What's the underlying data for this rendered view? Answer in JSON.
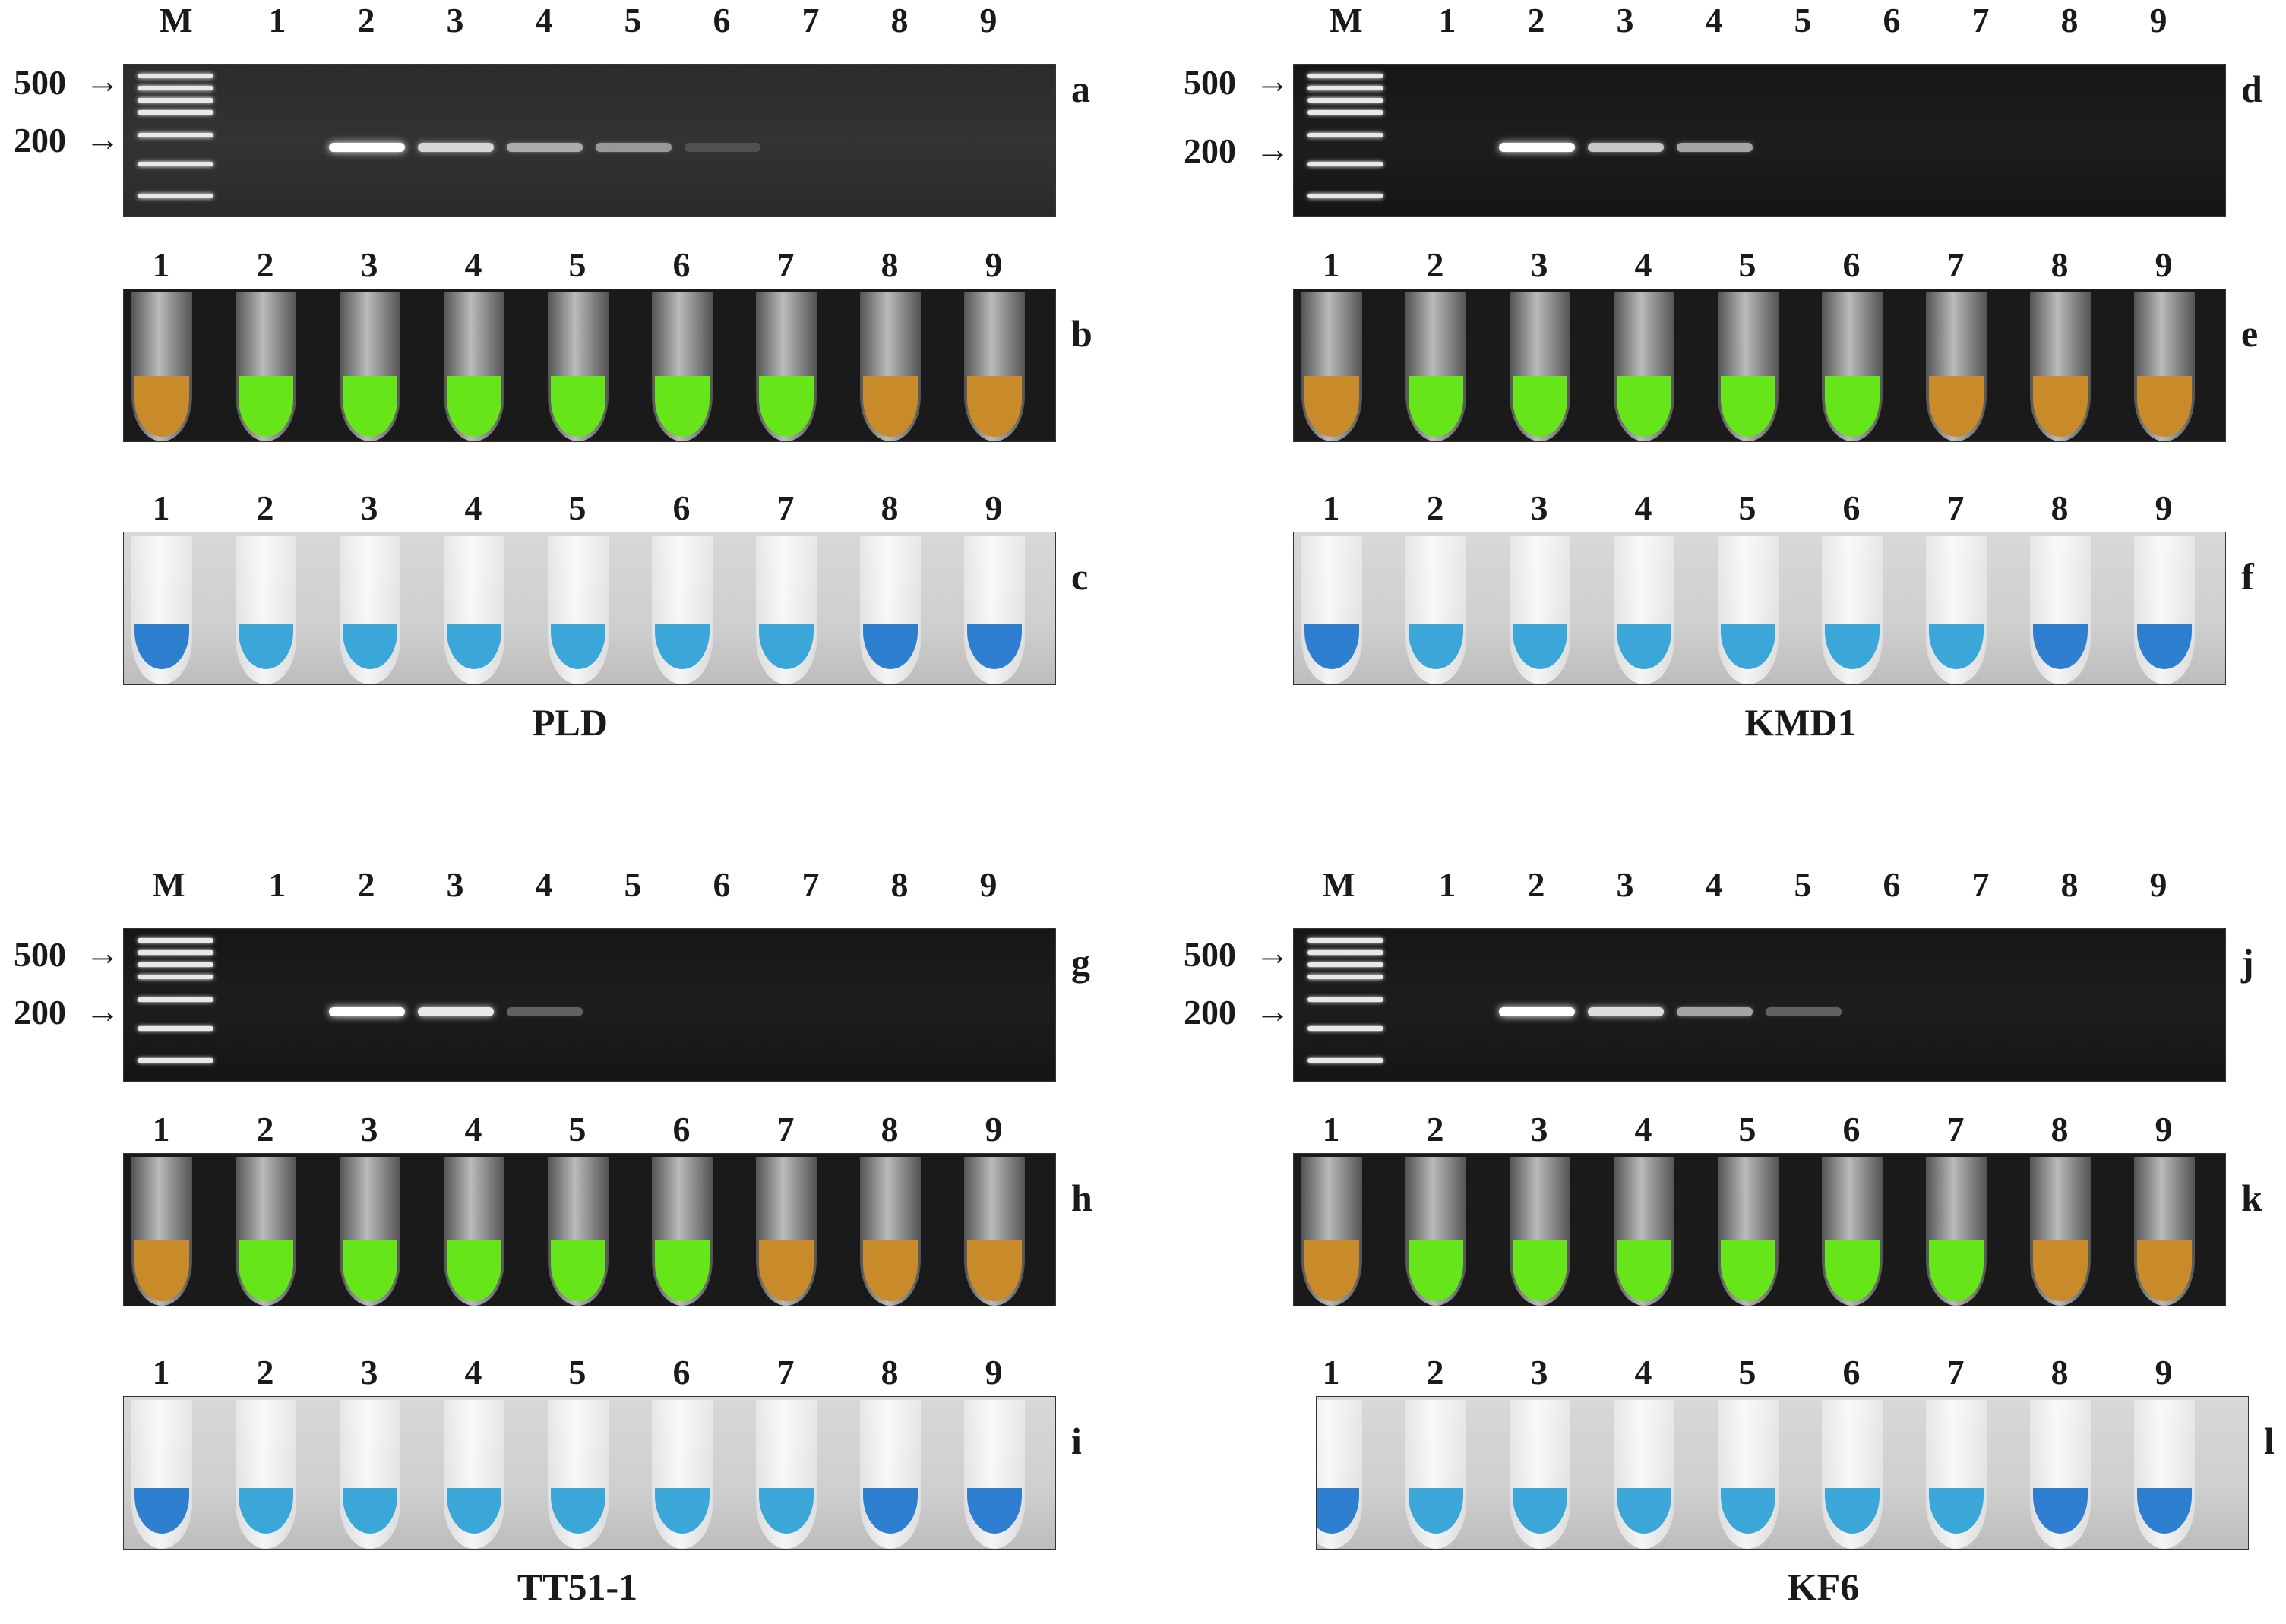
{
  "lanes": [
    "1",
    "2",
    "3",
    "4",
    "5",
    "6",
    "7",
    "8",
    "9"
  ],
  "marker_lane": "M",
  "marker_sizes": [
    "500",
    "200"
  ],
  "colors": {
    "fluor_positive": "#66e619",
    "fluor_negative": "#c98a2a",
    "hnb": "#3aa7d8",
    "hnb_dark": "#2f7fd0"
  },
  "quadrants": [
    {
      "strain": "PLD",
      "panels": [
        "a",
        "b",
        "c"
      ],
      "gel_band_intensity": [
        0,
        1.0,
        0.8,
        0.6,
        0.5,
        0.15,
        0,
        0,
        0
      ],
      "fluor_result": [
        "negative",
        "positive",
        "positive",
        "positive",
        "positive",
        "positive",
        "positive",
        "negative",
        "negative"
      ]
    },
    {
      "strain": "KMD1",
      "panels": [
        "d",
        "e",
        "f"
      ],
      "gel_band_intensity": [
        0,
        1.0,
        0.75,
        0.6,
        0,
        0,
        0,
        0,
        0
      ],
      "fluor_result": [
        "negative",
        "positive",
        "positive",
        "positive",
        "positive",
        "positive",
        "negative",
        "negative",
        "negative"
      ]
    },
    {
      "strain": "TT51-1",
      "panels": [
        "g",
        "h",
        "i"
      ],
      "gel_band_intensity": [
        0,
        1.0,
        0.9,
        0.3,
        0,
        0,
        0,
        0,
        0
      ],
      "fluor_result": [
        "negative",
        "positive",
        "positive",
        "positive",
        "positive",
        "positive",
        "negative",
        "negative",
        "negative"
      ]
    },
    {
      "strain": "KF6",
      "panels": [
        "j",
        "k",
        "l"
      ],
      "gel_band_intensity": [
        0,
        1.0,
        0.85,
        0.6,
        0.3,
        0,
        0,
        0,
        0
      ],
      "fluor_result": [
        "negative",
        "positive",
        "positive",
        "positive",
        "positive",
        "positive",
        "positive",
        "negative",
        "negative"
      ]
    }
  ]
}
